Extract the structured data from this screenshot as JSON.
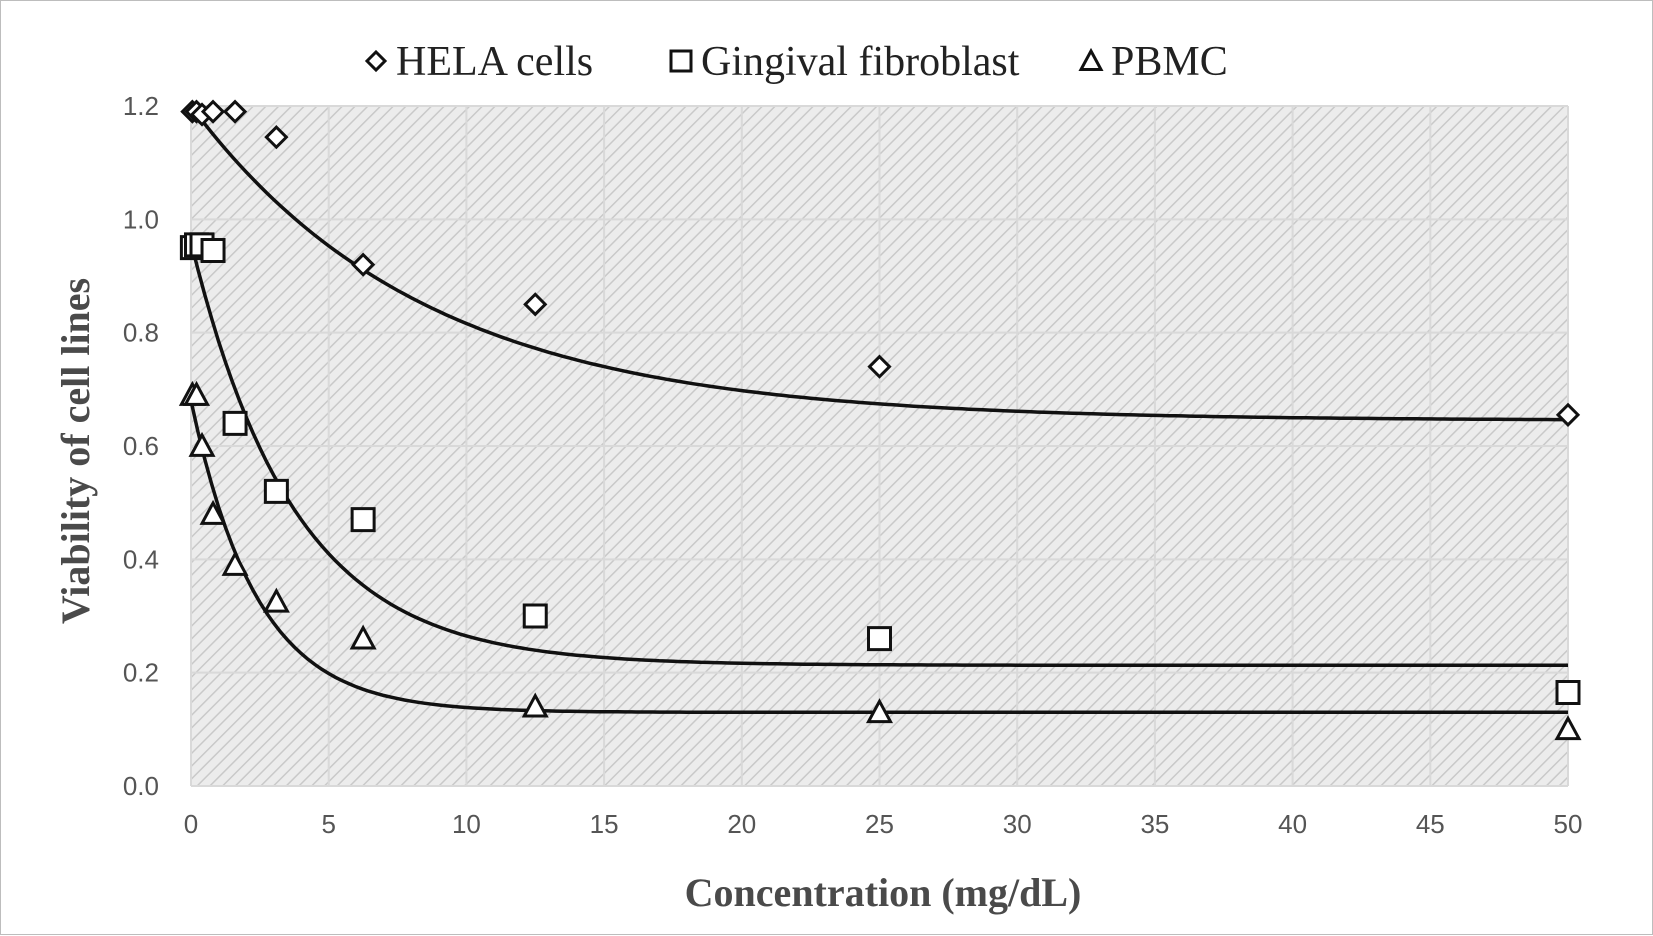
{
  "chart_data": {
    "type": "scatter",
    "xlabel": "Concentration (mg/dL)",
    "ylabel": "Viability of cell lines",
    "xlim": [
      0,
      50
    ],
    "ylim": [
      0,
      1.2
    ],
    "x_ticks": [
      "0",
      "5",
      "10",
      "15",
      "20",
      "25",
      "30",
      "35",
      "40",
      "45",
      "50"
    ],
    "y_ticks": [
      "0.0",
      "0.2",
      "0.4",
      "0.6",
      "0.8",
      "1.0",
      "1.2"
    ],
    "grid": true,
    "background": "diagonal hatch, light gray",
    "legend_position": "top",
    "series": [
      {
        "name": "HELA cells",
        "marker": "diamond",
        "points": [
          [
            0.05,
            1.19
          ],
          [
            0.2,
            1.19
          ],
          [
            0.4,
            1.185
          ],
          [
            0.8,
            1.19
          ],
          [
            1.6,
            1.19
          ],
          [
            3.1,
            1.145
          ],
          [
            6.25,
            0.92
          ],
          [
            12.5,
            0.85
          ],
          [
            25,
            0.74
          ],
          [
            50,
            0.655
          ]
        ],
        "trendline": {
          "form": "a + b*exp(-x/c)",
          "a": 0.645,
          "b": 0.555,
          "c": 8.5
        }
      },
      {
        "name": "Gingival fibroblast",
        "marker": "square",
        "points": [
          [
            0.05,
            0.95
          ],
          [
            0.2,
            0.955
          ],
          [
            0.4,
            0.955
          ],
          [
            0.8,
            0.945
          ],
          [
            1.6,
            0.64
          ],
          [
            3.1,
            0.52
          ],
          [
            6.25,
            0.47
          ],
          [
            12.5,
            0.3
          ],
          [
            25,
            0.26
          ],
          [
            50,
            0.165
          ]
        ],
        "trendline": {
          "form": "a + b*exp(-x/c)",
          "a": 0.213,
          "b": 0.747,
          "c": 3.75
        }
      },
      {
        "name": "PBMC",
        "marker": "triangle",
        "points": [
          [
            0.05,
            0.69
          ],
          [
            0.2,
            0.69
          ],
          [
            0.4,
            0.6
          ],
          [
            0.8,
            0.48
          ],
          [
            1.6,
            0.39
          ],
          [
            3.1,
            0.325
          ],
          [
            6.25,
            0.26
          ],
          [
            12.5,
            0.14
          ],
          [
            25,
            0.13
          ],
          [
            50,
            0.1
          ]
        ],
        "trendline": {
          "form": "a + b*exp(-x/c)",
          "a": 0.13,
          "b": 0.55,
          "c": 2.4
        }
      }
    ]
  }
}
